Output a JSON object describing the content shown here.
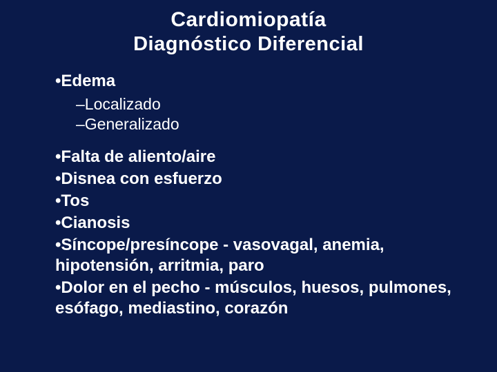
{
  "colors": {
    "background": "#0a1a4a",
    "text": "#ffffff"
  },
  "typography": {
    "title_fontsize": 30,
    "subtitle_fontsize": 29,
    "bullet_fontsize": 24,
    "subbullet_fontsize": 23,
    "font_family": "Arial"
  },
  "title": "Cardiomiopatía",
  "subtitle": "Diagnóstico Diferencial",
  "items": [
    {
      "text": "Edema",
      "sub": [
        "Localizado",
        "Generalizado"
      ]
    },
    {
      "text": "Falta de aliento/aire"
    },
    {
      "text": "Disnea con esfuerzo"
    },
    {
      "text": "Tos"
    },
    {
      "text": "Cianosis"
    },
    {
      "text": "Síncope/presíncope - vasovagal, anemia, hipotensión, arritmia, paro"
    },
    {
      "text": "Dolor en el pecho - músculos, huesos, pulmones, esófago, mediastino, corazón"
    }
  ],
  "bullet_glyph": "•",
  "subbullet_glyph": "–"
}
